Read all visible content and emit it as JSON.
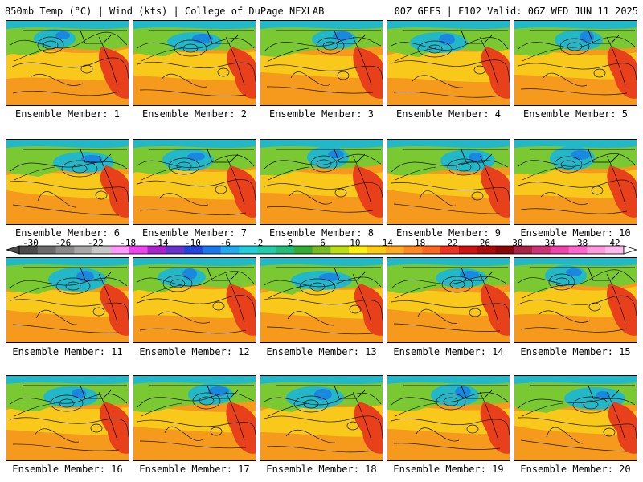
{
  "header": {
    "left_title": "850mb Temp (°C) | Wind (kts) | College of DuPage NEXLAB",
    "right_title": "00Z GEFS | F102 Valid: 06Z WED JUN 11 2025"
  },
  "panels": [
    {
      "label": "Ensemble Member: 1"
    },
    {
      "label": "Ensemble Member: 2"
    },
    {
      "label": "Ensemble Member: 3"
    },
    {
      "label": "Ensemble Member: 4"
    },
    {
      "label": "Ensemble Member: 5"
    },
    {
      "label": "Ensemble Member: 6"
    },
    {
      "label": "Ensemble Member: 7"
    },
    {
      "label": "Ensemble Member: 8"
    },
    {
      "label": "Ensemble Member: 9"
    },
    {
      "label": "Ensemble Member: 10"
    },
    {
      "label": "Ensemble Member: 11"
    },
    {
      "label": "Ensemble Member: 12"
    },
    {
      "label": "Ensemble Member: 13"
    },
    {
      "label": "Ensemble Member: 14"
    },
    {
      "label": "Ensemble Member: 15"
    },
    {
      "label": "Ensemble Member: 16"
    },
    {
      "label": "Ensemble Member: 17"
    },
    {
      "label": "Ensemble Member: 18"
    },
    {
      "label": "Ensemble Member: 19"
    },
    {
      "label": "Ensemble Member: 20"
    }
  ],
  "colorbar": {
    "labels": [
      "-30",
      "-26",
      "-22",
      "-18",
      "-14",
      "-10",
      "-6",
      "-2",
      "2",
      "6",
      "10",
      "14",
      "18",
      "22",
      "26",
      "30",
      "34",
      "38",
      "42"
    ],
    "colors": [
      "#4a4a4a",
      "#6a6a6a",
      "#8a8a8a",
      "#a8a8a8",
      "#c8c8c8",
      "#ff99ff",
      "#ee44ee",
      "#aa22cc",
      "#6633cc",
      "#2244dd",
      "#1a77ee",
      "#22aaee",
      "#22ccdd",
      "#22ccaa",
      "#22bb77",
      "#33aa33",
      "#77bb22",
      "#bbdd11",
      "#ffee11",
      "#ffcc11",
      "#ffaa22",
      "#ff8822",
      "#ff6622",
      "#ee3322",
      "#cc1111",
      "#aa0a0a",
      "#880808",
      "#aa2244",
      "#cc3377",
      "#ee44aa",
      "#ff66cc",
      "#ff99dd",
      "#ffbbee"
    ]
  },
  "map_colors": {
    "warm": "#f59a1c",
    "hot": "#e8401a",
    "mild": "#f8c81a",
    "cool": "#7ac832",
    "cold": "#22b8c8",
    "colder": "#1a88e0",
    "contour": "#1a1a1a",
    "border": "#000000"
  }
}
